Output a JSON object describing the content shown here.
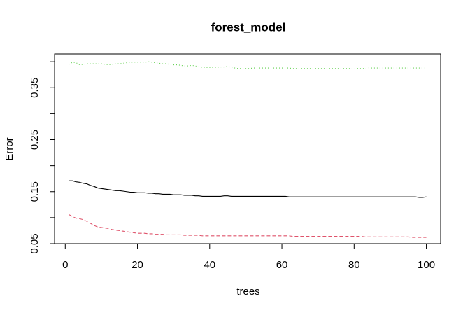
{
  "chart_data": {
    "type": "line",
    "title": "forest_model",
    "xlabel": "trees",
    "ylabel": "Error",
    "x": [
      1,
      2,
      3,
      4,
      5,
      6,
      7,
      8,
      9,
      10,
      11,
      12,
      13,
      14,
      15,
      16,
      17,
      18,
      19,
      20,
      21,
      22,
      23,
      24,
      25,
      26,
      27,
      28,
      29,
      30,
      31,
      32,
      33,
      34,
      35,
      36,
      37,
      38,
      39,
      40,
      41,
      42,
      43,
      44,
      45,
      46,
      47,
      48,
      49,
      50,
      51,
      52,
      53,
      54,
      55,
      56,
      57,
      58,
      59,
      60,
      61,
      62,
      63,
      64,
      65,
      66,
      67,
      68,
      69,
      70,
      71,
      72,
      73,
      74,
      75,
      76,
      77,
      78,
      79,
      80,
      81,
      82,
      83,
      84,
      85,
      86,
      87,
      88,
      89,
      90,
      91,
      92,
      93,
      94,
      95,
      96,
      97,
      98,
      99,
      100
    ],
    "series": [
      {
        "color": "#000000",
        "dash": "solid",
        "values": [
          0.171,
          0.171,
          0.169,
          0.168,
          0.166,
          0.165,
          0.162,
          0.16,
          0.157,
          0.156,
          0.155,
          0.154,
          0.153,
          0.152,
          0.152,
          0.151,
          0.15,
          0.149,
          0.149,
          0.148,
          0.148,
          0.148,
          0.147,
          0.147,
          0.146,
          0.146,
          0.145,
          0.145,
          0.145,
          0.144,
          0.144,
          0.144,
          0.143,
          0.143,
          0.143,
          0.142,
          0.142,
          0.141,
          0.141,
          0.141,
          0.141,
          0.141,
          0.141,
          0.142,
          0.142,
          0.141,
          0.141,
          0.141,
          0.141,
          0.141,
          0.141,
          0.141,
          0.141,
          0.141,
          0.141,
          0.141,
          0.141,
          0.141,
          0.141,
          0.141,
          0.141,
          0.14,
          0.14,
          0.14,
          0.14,
          0.14,
          0.14,
          0.14,
          0.14,
          0.14,
          0.14,
          0.14,
          0.14,
          0.14,
          0.14,
          0.14,
          0.14,
          0.14,
          0.14,
          0.14,
          0.14,
          0.14,
          0.14,
          0.14,
          0.14,
          0.14,
          0.14,
          0.14,
          0.14,
          0.14,
          0.14,
          0.14,
          0.14,
          0.14,
          0.14,
          0.14,
          0.14,
          0.139,
          0.139,
          0.14
        ]
      },
      {
        "color": "#df536b",
        "dash": "dashed",
        "values": [
          0.106,
          0.102,
          0.099,
          0.098,
          0.096,
          0.093,
          0.089,
          0.085,
          0.082,
          0.081,
          0.08,
          0.079,
          0.077,
          0.076,
          0.075,
          0.074,
          0.073,
          0.072,
          0.071,
          0.07,
          0.07,
          0.07,
          0.069,
          0.069,
          0.068,
          0.068,
          0.068,
          0.067,
          0.067,
          0.067,
          0.067,
          0.067,
          0.066,
          0.066,
          0.066,
          0.066,
          0.066,
          0.065,
          0.065,
          0.065,
          0.065,
          0.065,
          0.065,
          0.065,
          0.065,
          0.065,
          0.065,
          0.065,
          0.065,
          0.065,
          0.065,
          0.065,
          0.065,
          0.065,
          0.065,
          0.065,
          0.065,
          0.065,
          0.065,
          0.065,
          0.065,
          0.065,
          0.064,
          0.064,
          0.064,
          0.064,
          0.064,
          0.064,
          0.064,
          0.064,
          0.064,
          0.064,
          0.064,
          0.064,
          0.064,
          0.064,
          0.064,
          0.064,
          0.064,
          0.064,
          0.064,
          0.064,
          0.063,
          0.063,
          0.063,
          0.063,
          0.063,
          0.063,
          0.063,
          0.063,
          0.063,
          0.063,
          0.063,
          0.063,
          0.063,
          0.062,
          0.062,
          0.062,
          0.062,
          0.062
        ]
      },
      {
        "color": "#61d04f",
        "dash": "dotted",
        "values": [
          0.395,
          0.399,
          0.398,
          0.394,
          0.395,
          0.396,
          0.396,
          0.396,
          0.396,
          0.396,
          0.395,
          0.394,
          0.395,
          0.396,
          0.396,
          0.397,
          0.398,
          0.399,
          0.399,
          0.399,
          0.399,
          0.399,
          0.4,
          0.399,
          0.398,
          0.397,
          0.396,
          0.396,
          0.395,
          0.394,
          0.394,
          0.393,
          0.392,
          0.392,
          0.393,
          0.392,
          0.39,
          0.389,
          0.389,
          0.389,
          0.389,
          0.389,
          0.39,
          0.39,
          0.391,
          0.389,
          0.388,
          0.387,
          0.387,
          0.387,
          0.387,
          0.388,
          0.388,
          0.388,
          0.388,
          0.388,
          0.388,
          0.388,
          0.388,
          0.388,
          0.388,
          0.388,
          0.387,
          0.387,
          0.387,
          0.387,
          0.387,
          0.387,
          0.387,
          0.387,
          0.387,
          0.387,
          0.387,
          0.387,
          0.387,
          0.387,
          0.387,
          0.387,
          0.387,
          0.387,
          0.387,
          0.387,
          0.387,
          0.388,
          0.388,
          0.388,
          0.388,
          0.388,
          0.388,
          0.388,
          0.388,
          0.388,
          0.388,
          0.388,
          0.388,
          0.388,
          0.388,
          0.388,
          0.388,
          0.388
        ]
      }
    ],
    "xlim": [
      -2.96,
      103.96
    ],
    "xticks": [
      0,
      20,
      40,
      60,
      80,
      100
    ],
    "ylim": [
      0.05,
      0.415
    ],
    "yticks": [
      {
        "value": 0.05,
        "label": "0.05"
      },
      {
        "value": 0.15,
        "label": "0.15"
      },
      {
        "value": 0.25,
        "label": "0.25"
      },
      {
        "value": 0.35,
        "label": "0.35"
      }
    ],
    "yminor_ticks": [
      0.1,
      0.2,
      0.3,
      0.4
    ],
    "grid": false
  }
}
